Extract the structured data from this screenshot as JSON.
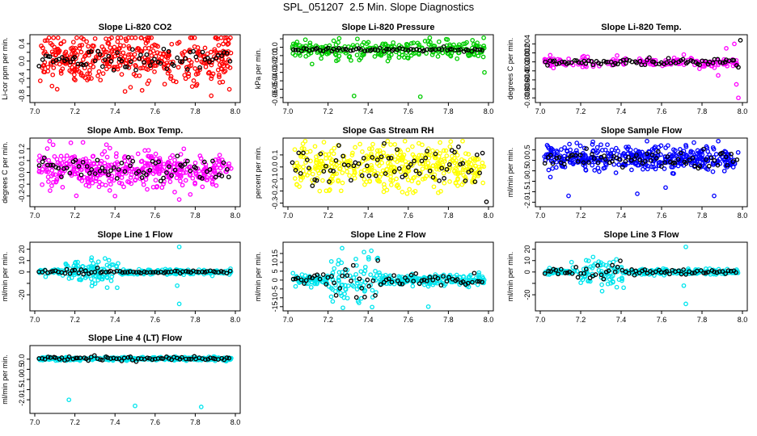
{
  "page_title": "SPL_051207  2.5 Min. Slope Diagnostics",
  "colors": {
    "red": "#ff0000",
    "green": "#00cc00",
    "magenta": "#ff00ff",
    "yellow": "#ffff00",
    "blue": "#0000ff",
    "cyan": "#00e5ee",
    "black": "#000000"
  },
  "chart_data": [
    {
      "type": "scatter",
      "id": "co2",
      "title": "Slope Li-820 CO2",
      "ylabel": "Li-cor ppm per min.",
      "color": "#ff0000",
      "xlim": [
        7.0,
        8.0
      ],
      "ylim": [
        -0.9,
        0.55
      ],
      "xticks": [
        "7.0",
        "7.2",
        "7.4",
        "7.6",
        "7.8",
        "8.0"
      ],
      "yticks": [
        -0.8,
        -0.6,
        -0.4,
        -0.2,
        0.0,
        0.2,
        0.4
      ],
      "yticklabels": [
        "-0.8",
        "",
        "-0.4",
        "",
        "0.0",
        "",
        "0.4"
      ],
      "series": {
        "colored": {
          "n": 420,
          "mid": 0.05,
          "spread": 0.28,
          "outliers": [
            [
              7.55,
              0.5
            ],
            [
              7.45,
              -0.7
            ],
            [
              7.88,
              -0.8
            ],
            [
              7.97,
              -0.65
            ],
            [
              7.04,
              0.3
            ]
          ]
        },
        "black": {
          "n": 70,
          "mid": 0.05,
          "spread": 0.14
        }
      }
    },
    {
      "type": "scatter",
      "id": "pressure",
      "title": "Slope Li-820 Pressure",
      "ylabel": "kPa per min.",
      "color": "#00cc00",
      "xlim": [
        7.0,
        8.0
      ],
      "ylim": [
        -0.063,
        0.012
      ],
      "xticks": [
        "7.0",
        "7.2",
        "7.4",
        "7.6",
        "7.8",
        "8.0"
      ],
      "yticks": [
        -0.06,
        -0.05,
        -0.04,
        -0.03,
        -0.02,
        -0.01,
        0.0,
        0.01
      ],
      "yticklabels": [
        "-0.06",
        "-0.05",
        "-0.04",
        "-0.03",
        "-0.02",
        "-0.01",
        "0.0",
        ""
      ],
      "series": {
        "colored": {
          "n": 260,
          "mid": -0.003,
          "spread": 0.005,
          "outliers": [
            [
              7.33,
              -0.058
            ],
            [
              7.66,
              -0.059
            ],
            [
              7.12,
              -0.02
            ],
            [
              7.25,
              -0.015
            ],
            [
              7.98,
              -0.03
            ],
            [
              7.58,
              -0.012
            ],
            [
              7.72,
              -0.009
            ]
          ]
        },
        "black": {
          "n": 70,
          "mid": -0.003,
          "spread": 0.001
        }
      }
    },
    {
      "type": "scatter",
      "id": "temp",
      "title": "Slope Li-820 Temp.",
      "ylabel": "degrees C per min.",
      "color": "#ff00ff",
      "xlim": [
        7.0,
        8.0
      ],
      "ylim": [
        -0.0085,
        0.0055
      ],
      "xticks": [
        "7.0",
        "7.2",
        "7.4",
        "7.6",
        "7.8",
        "8.0"
      ],
      "yticks": [
        -0.008,
        -0.006,
        -0.004,
        -0.002,
        0.0,
        0.002,
        0.004
      ],
      "yticklabels": [
        "-0.008",
        "-0.006",
        "-0.004",
        "-0.002",
        "0.000",
        "0.002",
        "0.004"
      ],
      "series": {
        "colored": {
          "n": 170,
          "mid": 0.0,
          "spread": 0.0006,
          "outliers": [
            [
              7.98,
              -0.008
            ],
            [
              7.97,
              -0.005
            ],
            [
              7.92,
              0.003
            ],
            [
              7.88,
              -0.003
            ],
            [
              7.96,
              0.004
            ]
          ]
        },
        "black": {
          "n": 80,
          "mid": 0.0,
          "spread": 0.0003,
          "outliers": [
            [
              7.99,
              0.0048
            ],
            [
              7.98,
              -0.0012
            ]
          ]
        }
      }
    },
    {
      "type": "scatter",
      "id": "ambtemp",
      "title": "Slope Amb. Box Temp.",
      "ylabel": "degrees C per min.",
      "color": "#ff00ff",
      "xlim": [
        7.0,
        8.0
      ],
      "ylim": [
        -0.27,
        0.27
      ],
      "xticks": [
        "7.0",
        "7.2",
        "7.4",
        "7.6",
        "7.8",
        "8.0"
      ],
      "yticks": [
        -0.2,
        -0.1,
        0.0,
        0.1,
        0.2
      ],
      "yticklabels": [
        "-0.2",
        "-0.1",
        "0.0",
        "0.1",
        "0.2"
      ],
      "series": {
        "colored": {
          "n": 420,
          "mid": 0.02,
          "spread": 0.08,
          "outliers": [
            [
              7.18,
              0.25
            ],
            [
              7.72,
              -0.23
            ],
            [
              7.4,
              -0.2
            ]
          ]
        },
        "black": {
          "n": 70,
          "mid": 0.02,
          "spread": 0.05
        }
      }
    },
    {
      "type": "scatter",
      "id": "rh",
      "title": "Slope Gas Stream RH",
      "ylabel": "percent per min.",
      "color": "#ffff00",
      "xlim": [
        7.0,
        8.0
      ],
      "ylim": [
        -0.31,
        0.22
      ],
      "xticks": [
        "7.0",
        "7.2",
        "7.4",
        "7.6",
        "7.8",
        "8.0"
      ],
      "yticks": [
        -0.3,
        -0.2,
        -0.1,
        0.0,
        0.1
      ],
      "yticklabels": [
        "-0.3",
        "-0.2",
        "-0.1",
        "0.0",
        "0.1"
      ],
      "series": {
        "colored": {
          "n": 420,
          "mid": 0.0,
          "spread": 0.09
        },
        "black": {
          "n": 70,
          "mid": 0.0,
          "spread": 0.08,
          "outliers": [
            [
              7.99,
              -0.29
            ]
          ]
        }
      }
    },
    {
      "type": "scatter",
      "id": "sample",
      "title": "Slope Sample Flow",
      "ylabel": "ml/min per min.",
      "color": "#0000ff",
      "xlim": [
        7.0,
        8.0
      ],
      "ylim": [
        -2.1,
        0.95
      ],
      "xticks": [
        "7.0",
        "7.2",
        "7.4",
        "7.6",
        "7.8",
        "8.0"
      ],
      "yticks": [
        -2.0,
        -1.5,
        -1.0,
        -0.5,
        0.0,
        0.5
      ],
      "yticklabels": [
        "-2.0",
        "-1.5",
        "-1.0",
        "-0.5",
        "0.0",
        "0.5"
      ],
      "series": {
        "colored": {
          "n": 420,
          "mid": 0.1,
          "spread": 0.28,
          "outliers": [
            [
              7.14,
              -1.7
            ],
            [
              7.05,
              -0.8
            ],
            [
              7.86,
              -1.7
            ],
            [
              7.48,
              -1.6
            ],
            [
              7.62,
              -1.3
            ],
            [
              7.3,
              0.75
            ],
            [
              7.76,
              0.85
            ]
          ]
        },
        "black": {
          "n": 70,
          "mid": 0.05,
          "spread": 0.2
        }
      }
    },
    {
      "type": "scatter",
      "id": "line1",
      "title": "Slope Line 1 Flow",
      "ylabel": "ml/min per min.",
      "color": "#00e5ee",
      "xlim": [
        7.0,
        8.0
      ],
      "ylim": [
        -32,
        24
      ],
      "xticks": [
        "7.0",
        "7.2",
        "7.4",
        "7.6",
        "7.8",
        "8.0"
      ],
      "yticks": [
        -20,
        -10,
        0,
        10,
        20
      ],
      "yticklabels": [
        "-20",
        "",
        "0",
        "10",
        "20"
      ],
      "series": {
        "colored": {
          "n": 300,
          "mid": 0,
          "spread": 1.2,
          "burst": [
            7.15,
            7.42,
            5.5
          ],
          "outliers": [
            [
              7.72,
              22
            ],
            [
              7.72,
              -28
            ],
            [
              7.71,
              -12
            ]
          ]
        },
        "black": {
          "n": 70,
          "mid": 0,
          "spread": 0.5
        }
      }
    },
    {
      "type": "scatter",
      "id": "line2",
      "title": "Slope Line 2 Flow",
      "ylabel": "ml/min per min.",
      "color": "#00e5ee",
      "xlim": [
        7.0,
        8.0
      ],
      "ylim": [
        -16,
        20
      ],
      "xticks": [
        "7.0",
        "7.2",
        "7.4",
        "7.6",
        "7.8",
        "8.0"
      ],
      "yticks": [
        -15,
        -10,
        -5,
        0,
        5,
        10,
        15
      ],
      "yticklabels": [
        "-15",
        "-10",
        "-5",
        "0",
        "5",
        "10",
        "15"
      ],
      "series": {
        "colored": {
          "n": 320,
          "mid": 0,
          "spread": 1.5,
          "burst": [
            7.2,
            7.45,
            6.5
          ],
          "outliers": [
            [
              7.7,
              -15
            ],
            [
              7.27,
              18
            ],
            [
              7.35,
              -12
            ]
          ]
        },
        "black": {
          "n": 70,
          "mid": 0,
          "spread": 1.8
        }
      }
    },
    {
      "type": "scatter",
      "id": "line3",
      "title": "Slope Line 3 Flow",
      "ylabel": "ml/min per min.",
      "color": "#00e5ee",
      "xlim": [
        7.0,
        8.0
      ],
      "ylim": [
        -32,
        24
      ],
      "xticks": [
        "7.0",
        "7.2",
        "7.4",
        "7.6",
        "7.8",
        "8.0"
      ],
      "yticks": [
        -20,
        -10,
        0,
        10,
        20
      ],
      "yticklabels": [
        "-20",
        "",
        "0",
        "10",
        "20"
      ],
      "series": {
        "colored": {
          "n": 300,
          "mid": 0,
          "spread": 1.2,
          "burst": [
            7.15,
            7.42,
            5.5
          ],
          "outliers": [
            [
              7.72,
              22
            ],
            [
              7.72,
              -28
            ],
            [
              7.71,
              -12
            ]
          ]
        },
        "black": {
          "n": 70,
          "mid": 0,
          "spread": 1.2
        }
      }
    },
    {
      "type": "scatter",
      "id": "line4",
      "title": "Slope Line 4 (LT) Flow",
      "ylabel": "ml/min per min.",
      "color": "#00e5ee",
      "xlim": [
        7.0,
        8.0
      ],
      "ylim": [
        -2.55,
        0.55
      ],
      "xticks": [
        "7.0",
        "7.2",
        "7.4",
        "7.6",
        "7.8",
        "8.0"
      ],
      "yticks": [
        -2.0,
        -1.5,
        -1.0,
        -0.5,
        0.0
      ],
      "yticklabels": [
        "-2.0",
        "-1.5",
        "-1.0",
        "-0.5",
        "0.0"
      ],
      "series": {
        "colored": {
          "n": 380,
          "mid": 0.02,
          "spread": 0.04,
          "outliers": [
            [
              7.17,
              -2.0
            ],
            [
              7.5,
              -2.3
            ],
            [
              7.83,
              -2.35
            ]
          ]
        },
        "black": {
          "n": 70,
          "mid": 0.03,
          "spread": 0.05
        }
      }
    }
  ]
}
